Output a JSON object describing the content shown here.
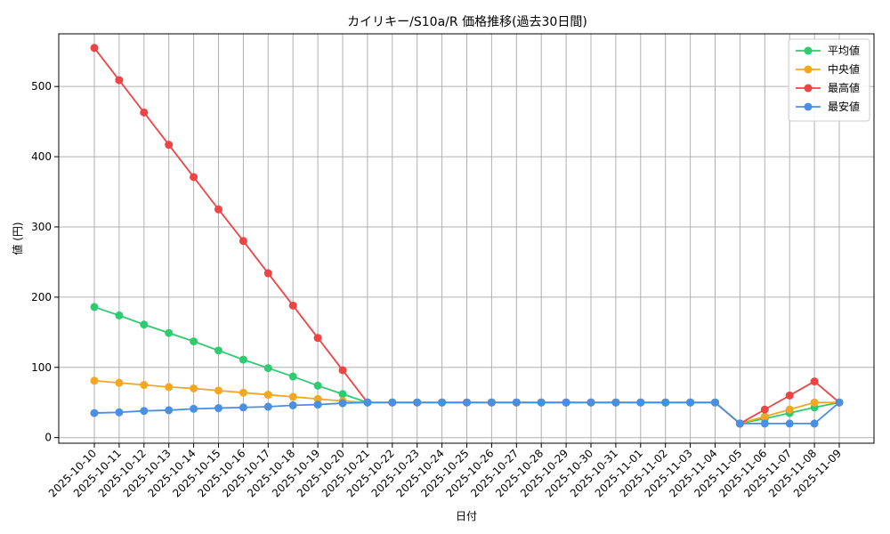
{
  "chart_data": {
    "type": "line",
    "title": "カイリキー/S10a/R 価格推移(過去30日間)",
    "xlabel": "日付",
    "ylabel": "値 (円)",
    "ylim": [
      -8,
      575
    ],
    "yticks": [
      0,
      100,
      200,
      300,
      400,
      500
    ],
    "grid": true,
    "legend_position": "top-right",
    "categories": [
      "2025-10-10",
      "2025-10-11",
      "2025-10-12",
      "2025-10-13",
      "2025-10-14",
      "2025-10-15",
      "2025-10-16",
      "2025-10-17",
      "2025-10-18",
      "2025-10-19",
      "2025-10-20",
      "2025-10-21",
      "2025-10-22",
      "2025-10-23",
      "2025-10-24",
      "2025-10-25",
      "2025-10-26",
      "2025-10-27",
      "2025-10-28",
      "2025-10-29",
      "2025-10-30",
      "2025-10-31",
      "2025-11-01",
      "2025-11-02",
      "2025-11-03",
      "2025-11-04",
      "2025-11-05",
      "2025-11-06",
      "2025-11-07",
      "2025-11-08",
      "2025-11-09"
    ],
    "series": [
      {
        "name": "平均値",
        "color": "#2ecc71",
        "values": [
          186,
          174,
          161,
          149,
          137,
          124,
          111,
          99,
          87,
          74,
          62,
          50,
          50,
          50,
          50,
          50,
          50,
          50,
          50,
          50,
          50,
          50,
          50,
          50,
          50,
          50,
          20,
          27,
          35,
          43,
          50
        ]
      },
      {
        "name": "中央値",
        "color": "#f5a623",
        "values": [
          81,
          78,
          75,
          72,
          70,
          67,
          64,
          61,
          58,
          55,
          52,
          50,
          50,
          50,
          50,
          50,
          50,
          50,
          50,
          50,
          50,
          50,
          50,
          50,
          50,
          50,
          20,
          30,
          40,
          50,
          50
        ]
      },
      {
        "name": "最高値",
        "color": "#ef4444",
        "values": [
          555,
          509,
          463,
          417,
          371,
          325,
          280,
          234,
          188,
          142,
          96,
          50,
          50,
          50,
          50,
          50,
          50,
          50,
          50,
          50,
          50,
          50,
          50,
          50,
          50,
          50,
          20,
          40,
          60,
          80,
          50
        ]
      },
      {
        "name": "最安値",
        "color": "#4a90e2",
        "values": [
          35,
          36,
          38,
          39,
          41,
          42,
          43,
          44,
          46,
          47,
          49,
          50,
          50,
          50,
          50,
          50,
          50,
          50,
          50,
          50,
          50,
          50,
          50,
          50,
          50,
          50,
          20,
          20,
          20,
          20,
          50
        ]
      }
    ]
  }
}
